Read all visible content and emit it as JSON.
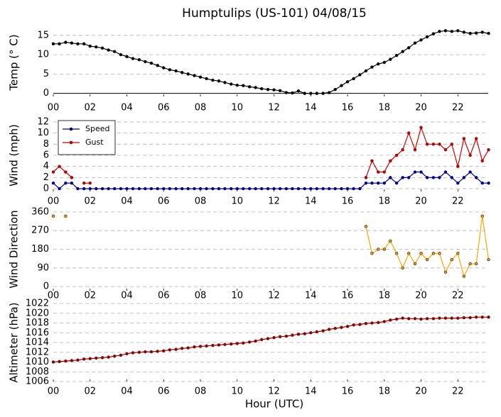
{
  "chart_data": [
    {
      "type": "line",
      "title": "Humptulips (US-101) 04/08/15",
      "ylabel": "Temp (° C)",
      "x": [
        0,
        0.33,
        0.67,
        1,
        1.33,
        1.67,
        2,
        2.33,
        2.67,
        3,
        3.33,
        3.67,
        4,
        4.33,
        4.67,
        5,
        5.33,
        5.67,
        6,
        6.33,
        6.67,
        7,
        7.33,
        7.67,
        8,
        8.33,
        8.67,
        9,
        9.33,
        9.67,
        10,
        10.33,
        10.67,
        11,
        11.33,
        11.67,
        12,
        12.33,
        12.67,
        13,
        13.33,
        13.67,
        14,
        14.33,
        14.67,
        15,
        15.33,
        15.67,
        16,
        16.33,
        16.67,
        17,
        17.33,
        17.67,
        18,
        18.33,
        18.67,
        19,
        19.33,
        19.67,
        20,
        20.33,
        20.67,
        21,
        21.33,
        21.67,
        22,
        22.33,
        22.67,
        23,
        23.33,
        23.67
      ],
      "series": [
        {
          "name": "Temp",
          "color": "#000000",
          "marker_color": "#000000",
          "values": [
            12.8,
            12.8,
            13.2,
            13.0,
            12.8,
            12.8,
            12.2,
            12.0,
            11.7,
            11.2,
            10.8,
            10.0,
            9.5,
            9.0,
            8.7,
            8.2,
            7.8,
            7.2,
            6.6,
            6.1,
            5.8,
            5.4,
            5.0,
            4.6,
            4.2,
            3.8,
            3.4,
            3.2,
            2.8,
            2.4,
            2.1,
            2.0,
            1.7,
            1.5,
            1.2,
            1.0,
            0.9,
            0.7,
            0.2,
            0.1,
            0.6,
            0,
            0,
            0,
            0,
            0.2,
            1.0,
            2.0,
            3.0,
            3.8,
            4.8,
            5.8,
            6.8,
            7.6,
            8.0,
            8.8,
            9.8,
            10.8,
            11.8,
            13.0,
            13.8,
            14.6,
            15.4,
            16.0,
            16.2,
            16.0,
            16.2,
            15.8,
            15.5,
            15.6,
            15.8,
            15.5
          ]
        }
      ],
      "hline": 0,
      "xlim": [
        0,
        23.65
      ],
      "ylim": [
        -0.8,
        16.8
      ],
      "yticks": [
        0,
        5,
        10,
        15
      ],
      "grid": true,
      "xticks": [
        {
          "value": 0,
          "label": "00"
        },
        {
          "value": 2,
          "label": "02"
        },
        {
          "value": 4,
          "label": "04"
        },
        {
          "value": 6,
          "label": "06"
        },
        {
          "value": 8,
          "label": "08"
        },
        {
          "value": 10,
          "label": "10"
        },
        {
          "value": 12,
          "label": "12"
        },
        {
          "value": 14,
          "label": "14"
        },
        {
          "value": 16,
          "label": "16"
        },
        {
          "value": 18,
          "label": "18"
        },
        {
          "value": 20,
          "label": "20"
        },
        {
          "value": 22,
          "label": "22"
        }
      ]
    },
    {
      "type": "line",
      "ylabel": "Wind (mph)",
      "legend": "upper left",
      "x": [
        0,
        0.33,
        0.67,
        1,
        1.33,
        1.67,
        2,
        2.33,
        2.67,
        3,
        3.33,
        3.67,
        4,
        4.33,
        4.67,
        5,
        5.33,
        5.67,
        6,
        6.33,
        6.67,
        7,
        7.33,
        7.67,
        8,
        8.33,
        8.67,
        9,
        9.33,
        9.67,
        10,
        10.33,
        10.67,
        11,
        11.33,
        11.67,
        12,
        12.33,
        12.67,
        13,
        13.33,
        13.67,
        14,
        14.33,
        14.67,
        15,
        15.33,
        15.67,
        16,
        16.33,
        16.67,
        17,
        17.33,
        17.67,
        18,
        18.33,
        18.67,
        19,
        19.33,
        19.67,
        20,
        20.33,
        20.67,
        21,
        21.33,
        21.67,
        22,
        22.33,
        22.67,
        23,
        23.33,
        23.67
      ],
      "series": [
        {
          "name": "Speed",
          "color": "#00008b",
          "marker_color": "#00008b",
          "values": [
            1,
            0,
            1,
            1,
            0,
            0,
            0,
            0,
            0,
            0,
            0,
            0,
            0,
            0,
            0,
            0,
            0,
            0,
            0,
            0,
            0,
            0,
            0,
            0,
            0,
            0,
            0,
            0,
            0,
            0,
            0,
            0,
            0,
            0,
            0,
            0,
            0,
            0,
            0,
            0,
            0,
            0,
            0,
            0,
            0,
            0,
            0,
            0,
            0,
            0,
            0,
            1,
            1,
            1,
            1,
            2,
            1,
            2,
            2,
            3,
            3,
            2,
            2,
            2,
            3,
            2,
            1,
            2,
            3,
            2,
            1,
            1
          ]
        },
        {
          "name": "Gust",
          "color": "#cc0000",
          "marker_color": "#8b0000",
          "values": [
            3,
            4,
            3,
            2,
            null,
            1,
            1,
            null,
            null,
            null,
            null,
            null,
            null,
            null,
            null,
            null,
            null,
            null,
            null,
            null,
            null,
            null,
            null,
            null,
            null,
            null,
            null,
            null,
            null,
            null,
            null,
            null,
            null,
            null,
            null,
            null,
            null,
            null,
            null,
            null,
            null,
            null,
            null,
            null,
            null,
            null,
            null,
            null,
            null,
            null,
            null,
            2,
            5,
            3,
            3,
            5,
            6,
            7,
            10,
            7,
            11,
            8,
            8,
            8,
            7,
            8,
            4,
            9,
            6,
            9,
            5,
            7
          ]
        }
      ],
      "xlim": [
        0,
        23.65
      ],
      "ylim": [
        -0.5,
        12.5
      ],
      "yticks": [
        0,
        2,
        4,
        6,
        8,
        10,
        12
      ],
      "grid": true,
      "xticks": [
        {
          "value": 0,
          "label": "00"
        },
        {
          "value": 2,
          "label": "02"
        },
        {
          "value": 4,
          "label": "04"
        },
        {
          "value": 6,
          "label": "06"
        },
        {
          "value": 8,
          "label": "08"
        },
        {
          "value": 10,
          "label": "10"
        },
        {
          "value": 12,
          "label": "12"
        },
        {
          "value": 14,
          "label": "14"
        },
        {
          "value": 16,
          "label": "16"
        },
        {
          "value": 18,
          "label": "18"
        },
        {
          "value": 20,
          "label": "20"
        },
        {
          "value": 22,
          "label": "22"
        }
      ]
    },
    {
      "type": "line",
      "ylabel": "Wind Direction",
      "x": [
        0,
        0.33,
        0.67,
        1,
        1.33,
        1.67,
        2,
        2.33,
        2.67,
        3,
        3.33,
        3.67,
        4,
        4.33,
        4.67,
        5,
        5.33,
        5.67,
        6,
        6.33,
        6.67,
        7,
        7.33,
        7.67,
        8,
        8.33,
        8.67,
        9,
        9.33,
        9.67,
        10,
        10.33,
        10.67,
        11,
        11.33,
        11.67,
        12,
        12.33,
        12.67,
        13,
        13.33,
        13.67,
        14,
        14.33,
        14.67,
        15,
        15.33,
        15.67,
        16,
        16.33,
        16.67,
        17,
        17.33,
        17.67,
        18,
        18.33,
        18.67,
        19,
        19.33,
        19.67,
        20,
        20.33,
        20.67,
        21,
        21.33,
        21.67,
        22,
        22.33,
        22.67,
        23,
        23.33,
        23.67
      ],
      "series": [
        {
          "name": "Direction",
          "color": "#ffa500",
          "marker_color": "#333333",
          "values": [
            340,
            null,
            340,
            null,
            null,
            null,
            null,
            null,
            null,
            null,
            null,
            null,
            null,
            null,
            null,
            null,
            null,
            null,
            null,
            null,
            null,
            null,
            null,
            null,
            null,
            null,
            null,
            null,
            null,
            null,
            null,
            null,
            null,
            null,
            null,
            null,
            null,
            null,
            null,
            null,
            null,
            null,
            null,
            null,
            null,
            null,
            null,
            null,
            null,
            null,
            null,
            290,
            160,
            180,
            180,
            220,
            160,
            90,
            160,
            110,
            160,
            130,
            160,
            160,
            70,
            130,
            160,
            50,
            110,
            110,
            340,
            130
          ]
        }
      ],
      "xlim": [
        0,
        23.65
      ],
      "ylim": [
        -20,
        380
      ],
      "yticks": [
        0,
        90,
        180,
        270,
        360
      ],
      "grid": true,
      "xticks": [
        {
          "value": 0,
          "label": "00"
        },
        {
          "value": 2,
          "label": "02"
        },
        {
          "value": 4,
          "label": "04"
        },
        {
          "value": 6,
          "label": "06"
        },
        {
          "value": 8,
          "label": "08"
        },
        {
          "value": 10,
          "label": "10"
        },
        {
          "value": 12,
          "label": "12"
        },
        {
          "value": 14,
          "label": "14"
        },
        {
          "value": 16,
          "label": "16"
        },
        {
          "value": 18,
          "label": "18"
        },
        {
          "value": 20,
          "label": "20"
        },
        {
          "value": 22,
          "label": "22"
        }
      ]
    },
    {
      "type": "line",
      "ylabel": "Altimeter (hPa)",
      "xlabel": "Hour (UTC)",
      "x": [
        0,
        0.33,
        0.67,
        1,
        1.33,
        1.67,
        2,
        2.33,
        2.67,
        3,
        3.33,
        3.67,
        4,
        4.33,
        4.67,
        5,
        5.33,
        5.67,
        6,
        6.33,
        6.67,
        7,
        7.33,
        7.67,
        8,
        8.33,
        8.67,
        9,
        9.33,
        9.67,
        10,
        10.33,
        10.67,
        11,
        11.33,
        11.67,
        12,
        12.33,
        12.67,
        13,
        13.33,
        13.67,
        14,
        14.33,
        14.67,
        15,
        15.33,
        15.67,
        16,
        16.33,
        16.67,
        17,
        17.33,
        17.67,
        18,
        18.33,
        18.67,
        19,
        19.33,
        19.67,
        20,
        20.33,
        20.67,
        21,
        21.33,
        21.67,
        22,
        22.33,
        22.67,
        23,
        23.33,
        23.67
      ],
      "series": [
        {
          "name": "Altimeter",
          "color": "#8b0000",
          "marker_color": "#8b0000",
          "values": [
            1010.0,
            1010.1,
            1010.2,
            1010.3,
            1010.4,
            1010.6,
            1010.7,
            1010.8,
            1010.9,
            1011.0,
            1011.2,
            1011.4,
            1011.7,
            1011.9,
            1012.0,
            1012.1,
            1012.1,
            1012.2,
            1012.3,
            1012.5,
            1012.6,
            1012.8,
            1012.9,
            1013.1,
            1013.2,
            1013.3,
            1013.4,
            1013.5,
            1013.6,
            1013.7,
            1013.8,
            1013.9,
            1014.1,
            1014.3,
            1014.6,
            1014.8,
            1015.0,
            1015.2,
            1015.3,
            1015.5,
            1015.7,
            1015.8,
            1016.0,
            1016.2,
            1016.4,
            1016.7,
            1016.9,
            1017.1,
            1017.3,
            1017.6,
            1017.7,
            1017.9,
            1018.0,
            1018.1,
            1018.3,
            1018.6,
            1018.8,
            1019.0,
            1018.9,
            1018.9,
            1018.8,
            1018.9,
            1018.9,
            1019.0,
            1019.0,
            1019.0,
            1019.0,
            1019.1,
            1019.1,
            1019.2,
            1019.2,
            1019.2
          ]
        }
      ],
      "xlim": [
        0,
        23.65
      ],
      "ylim": [
        1006,
        1022
      ],
      "yticks": [
        1006,
        1008,
        1010,
        1012,
        1014,
        1016,
        1018,
        1020,
        1022
      ],
      "grid": true,
      "xticks": [
        {
          "value": 0,
          "label": "00"
        },
        {
          "value": 2,
          "label": "02"
        },
        {
          "value": 4,
          "label": "04"
        },
        {
          "value": 6,
          "label": "06"
        },
        {
          "value": 8,
          "label": "08"
        },
        {
          "value": 10,
          "label": "10"
        },
        {
          "value": 12,
          "label": "12"
        },
        {
          "value": 14,
          "label": "14"
        },
        {
          "value": 16,
          "label": "16"
        },
        {
          "value": 18,
          "label": "18"
        },
        {
          "value": 20,
          "label": "20"
        },
        {
          "value": 22,
          "label": "22"
        }
      ]
    }
  ]
}
